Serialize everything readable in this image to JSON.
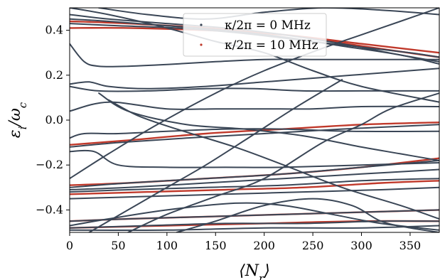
{
  "chart_data": {
    "type": "line",
    "title": "",
    "xlabel": "⟨N_r⟩",
    "ylabel": "ε_i/ω_c",
    "xlim": [
      0,
      380
    ],
    "ylim": [
      -0.5,
      0.5
    ],
    "xticks": [
      0,
      50,
      100,
      150,
      200,
      250,
      300,
      350
    ],
    "yticks": [
      -0.4,
      -0.2,
      0.0,
      0.2,
      0.4
    ],
    "xtick_labels": [
      "0",
      "50",
      "100",
      "150",
      "200",
      "250",
      "300",
      "350"
    ],
    "ytick_labels": [
      "−0.4",
      "−0.2",
      "0.0",
      "0.2",
      "0.4"
    ],
    "grid": false,
    "legend_position": "top-center",
    "legend": [
      {
        "label": "κ/2π = 0 MHz",
        "color": "#3a4656"
      },
      {
        "label": "κ/2π = 10 MHz",
        "color": "#c0392b"
      }
    ],
    "series": [
      {
        "name": "κ/2π = 0 MHz",
        "color": "#3a4656",
        "curves": [
          {
            "x": [
              0,
              40,
              100,
              160,
              220,
              280,
              340,
              380
            ],
            "y": [
              0.47,
              0.45,
              0.43,
              0.41,
              0.38,
              0.34,
              0.29,
              0.26
            ]
          },
          {
            "x": [
              0,
              40,
              100,
              160,
              220,
              280,
              340,
              380
            ],
            "y": [
              0.45,
              0.44,
              0.42,
              0.4,
              0.37,
              0.33,
              0.29,
              0.25
            ]
          },
          {
            "x": [
              0,
              50,
              110,
              170,
              230,
              290,
              350,
              380
            ],
            "y": [
              0.43,
              0.42,
              0.41,
              0.39,
              0.36,
              0.33,
              0.3,
              0.28
            ]
          },
          {
            "x": [
              0,
              15,
              30,
              60,
              110,
              150,
              200,
              260,
              320,
              380
            ],
            "y": [
              0.34,
              0.26,
              0.24,
              0.24,
              0.25,
              0.26,
              0.27,
              0.27,
              0.27,
              0.27
            ]
          },
          {
            "x": [
              0,
              20,
              40,
              80,
              140,
              200,
              260,
              320,
              380
            ],
            "y": [
              0.16,
              0.17,
              0.15,
              0.14,
              0.15,
              0.17,
              0.19,
              0.21,
              0.23
            ]
          },
          {
            "x": [
              0,
              30,
              80,
              140,
              190,
              240,
              300,
              380
            ],
            "y": [
              0.15,
              0.13,
              0.13,
              0.14,
              0.14,
              0.13,
              0.13,
              0.13
            ]
          },
          {
            "x": [
              0,
              40,
              100,
              150,
              200,
              250,
              300,
              380
            ],
            "y": [
              0.04,
              0.08,
              0.05,
              0.05,
              0.05,
              0.05,
              0.06,
              0.06
            ]
          },
          {
            "x": [
              0,
              15,
              50,
              100,
              160,
              220,
              290,
              380
            ],
            "y": [
              -0.08,
              -0.06,
              -0.06,
              -0.05,
              -0.04,
              -0.04,
              -0.05,
              -0.05
            ]
          },
          {
            "x": [
              0,
              50,
              120,
              200,
              280,
              380
            ],
            "y": [
              -0.12,
              -0.1,
              -0.08,
              -0.06,
              -0.04,
              -0.02
            ]
          },
          {
            "x": [
              0,
              25,
              50,
              100,
              160,
              220,
              300,
              380
            ],
            "y": [
              -0.14,
              -0.14,
              -0.2,
              -0.21,
              -0.21,
              -0.21,
              -0.2,
              -0.19
            ]
          },
          {
            "x": [
              0,
              60,
              140,
              220,
              300,
              380
            ],
            "y": [
              -0.3,
              -0.28,
              -0.26,
              -0.24,
              -0.21,
              -0.18
            ]
          },
          {
            "x": [
              0,
              60,
              140,
              220,
              300,
              380
            ],
            "y": [
              -0.31,
              -0.3,
              -0.28,
              -0.26,
              -0.24,
              -0.22
            ]
          },
          {
            "x": [
              0,
              60,
              140,
              220,
              300,
              380
            ],
            "y": [
              -0.32,
              -0.31,
              -0.3,
              -0.29,
              -0.27,
              -0.26
            ]
          },
          {
            "x": [
              0,
              80,
              160,
              240,
              320,
              380
            ],
            "y": [
              -0.35,
              -0.34,
              -0.33,
              -0.32,
              -0.31,
              -0.3
            ]
          },
          {
            "x": [
              0,
              40,
              100,
              170,
              220,
              270,
              320,
              380
            ],
            "y": [
              -0.47,
              -0.44,
              -0.4,
              -0.37,
              -0.38,
              -0.42,
              -0.46,
              -0.49
            ]
          },
          {
            "x": [
              0,
              60,
              140,
              220,
              300,
              380
            ],
            "y": [
              -0.45,
              -0.44,
              -0.43,
              -0.42,
              -0.41,
              -0.4
            ]
          },
          {
            "x": [
              0,
              80,
              160,
              240,
              320,
              380
            ],
            "y": [
              -0.48,
              -0.47,
              -0.46,
              -0.46,
              -0.45,
              -0.45
            ]
          },
          {
            "x": [
              0,
              100,
              200,
              300,
              380
            ],
            "y": [
              -0.49,
              -0.49,
              -0.48,
              -0.48,
              -0.47
            ]
          },
          {
            "x": [
              0,
              40,
              90,
              150,
              200,
              260,
              300,
              340,
              380
            ],
            "y": [
              -0.26,
              -0.15,
              -0.02,
              0.12,
              0.22,
              0.32,
              0.38,
              0.44,
              0.5
            ]
          },
          {
            "x": [
              20,
              60,
              100,
              140,
              180,
              230,
              280
            ],
            "y": [
              -0.5,
              -0.4,
              -0.3,
              -0.2,
              -0.09,
              0.05,
              0.18
            ]
          },
          {
            "x": [
              60,
              100,
              150,
              200,
              260,
              300,
              330,
              380
            ],
            "y": [
              -0.5,
              -0.42,
              -0.34,
              -0.26,
              -0.1,
              -0.02,
              0.05,
              0.12
            ]
          },
          {
            "x": [
              30,
              60,
              120,
              180,
              240,
              300,
              340,
              380
            ],
            "y": [
              0.12,
              0.04,
              -0.02,
              -0.04,
              -0.07,
              -0.12,
              -0.15,
              -0.18
            ]
          },
          {
            "x": [
              40,
              70,
              110,
              170,
              220,
              280,
              340,
              380
            ],
            "y": [
              0.09,
              0.02,
              -0.04,
              -0.12,
              -0.2,
              -0.3,
              -0.38,
              -0.44
            ]
          },
          {
            "x": [
              110,
              150,
              200,
              250,
              290,
              320,
              350,
              380
            ],
            "y": [
              -0.5,
              -0.45,
              -0.38,
              -0.35,
              -0.38,
              -0.45,
              -0.48,
              -0.5
            ]
          },
          {
            "x": [
              0,
              40,
              100,
              150,
              200,
              250,
              300,
              380
            ],
            "y": [
              0.5,
              0.47,
              0.41,
              0.35,
              0.3,
              0.22,
              0.15,
              0.08
            ]
          },
          {
            "x": [
              30,
              80,
              140,
              200,
              260,
              320,
              380
            ],
            "y": [
              0.5,
              0.47,
              0.45,
              0.48,
              0.5,
              0.49,
              0.47
            ]
          }
        ]
      },
      {
        "name": "κ/2π = 10 MHz",
        "color": "#c0392b",
        "curves": [
          {
            "x": [
              0,
              60,
              140,
              220,
              300,
              380
            ],
            "y": [
              0.41,
              0.41,
              0.4,
              0.38,
              0.34,
              0.3
            ]
          },
          {
            "x": [
              0,
              60,
              140,
              220,
              300,
              380
            ],
            "y": [
              -0.11,
              -0.09,
              -0.06,
              -0.04,
              -0.02,
              -0.01
            ]
          },
          {
            "x": [
              0,
              60,
              140,
              220,
              300,
              380
            ],
            "y": [
              -0.29,
              -0.28,
              -0.26,
              -0.24,
              -0.21,
              -0.17
            ]
          },
          {
            "x": [
              0,
              80,
              160,
              240,
              320,
              380
            ],
            "y": [
              -0.33,
              -0.32,
              -0.31,
              -0.3,
              -0.28,
              -0.27
            ]
          },
          {
            "x": [
              0,
              60,
              140,
              220,
              300,
              380
            ],
            "y": [
              -0.45,
              -0.44,
              -0.43,
              -0.42,
              -0.41,
              -0.4
            ]
          },
          {
            "x": [
              0,
              100,
              200,
              300,
              380
            ],
            "y": [
              -0.48,
              -0.47,
              -0.46,
              -0.45,
              -0.45
            ]
          },
          {
            "x": [
              0,
              60,
              140,
              220,
              300,
              380
            ],
            "y": [
              0.44,
              0.43,
              0.41,
              0.38,
              0.33,
              0.28
            ]
          }
        ]
      }
    ]
  }
}
